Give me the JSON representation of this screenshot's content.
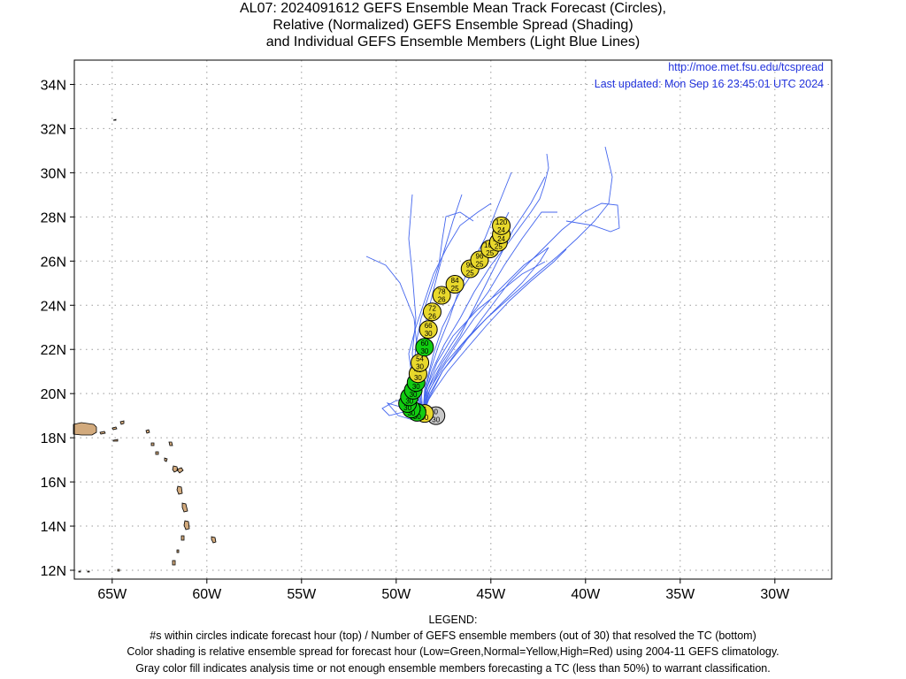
{
  "title_lines": [
    "AL07: 2024091612 GEFS Ensemble Mean Track Forecast (Circles),",
    "Relative (Normalized) GEFS Ensemble Spread (Shading)",
    "and Individual GEFS Ensemble Members (Light Blue Lines)"
  ],
  "credit": {
    "url": "http://moe.met.fsu.edu/tcspread",
    "updated": "Last updated: Mon Sep 16 23:45:01 UTC 2024"
  },
  "axes": {
    "lon_labels": [
      "65W",
      "60W",
      "55W",
      "50W",
      "45W",
      "40W",
      "35W",
      "30W"
    ],
    "lat_labels": [
      "12N",
      "14N",
      "16N",
      "18N",
      "20N",
      "22N",
      "24N",
      "26N",
      "28N",
      "30N",
      "32N",
      "34N"
    ],
    "lon_range": [
      -67,
      -27
    ],
    "lat_range": [
      11.6,
      35.1
    ],
    "grid": true
  },
  "legend": {
    "heading": "LEGEND:",
    "lines": [
      "#s within circles indicate forecast hour (top) / Number of GEFS ensemble members (out of 30) that resolved the TC (bottom)",
      "Color shading is relative ensemble spread for forecast hour (Low=Green,Normal=Yellow,High=Red) using 2004-11 GEFS climatology.",
      "Gray color fill indicates analysis time or not enough ensemble members forecasting a TC (less than 50%) to warrant classification."
    ]
  },
  "colors": {
    "low": "#11cc11",
    "normal": "#e8d82c",
    "gray": "#c8c8c8",
    "member_line": "#4466ee",
    "land": "#d2aa7d",
    "credit": "#2233dd"
  },
  "track": [
    {
      "hour": "0",
      "members": "30",
      "lon": -47.9,
      "lat": 19.0,
      "color": "gray"
    },
    {
      "hour": "6",
      "members": "30",
      "lon": -48.5,
      "lat": 19.1,
      "color": "normal"
    },
    {
      "hour": "12",
      "members": "30",
      "lon": -48.9,
      "lat": 19.15,
      "color": "low"
    },
    {
      "hour": "18",
      "members": "30",
      "lon": -49.2,
      "lat": 19.3,
      "color": "low"
    },
    {
      "hour": "24",
      "members": "30",
      "lon": -49.4,
      "lat": 19.55,
      "color": "low"
    },
    {
      "hour": "30",
      "members": "30",
      "lon": -49.3,
      "lat": 19.85,
      "color": "low"
    },
    {
      "hour": "36",
      "members": "30",
      "lon": -49.1,
      "lat": 20.15,
      "color": "low"
    },
    {
      "hour": "42",
      "members": "30",
      "lon": -48.95,
      "lat": 20.5,
      "color": "low"
    },
    {
      "hour": "48",
      "members": "30",
      "lon": -48.85,
      "lat": 20.9,
      "color": "normal"
    },
    {
      "hour": "54",
      "members": "30",
      "lon": -48.75,
      "lat": 21.4,
      "color": "normal"
    },
    {
      "hour": "60",
      "members": "30",
      "lon": -48.5,
      "lat": 22.1,
      "color": "low"
    },
    {
      "hour": "66",
      "members": "30",
      "lon": -48.3,
      "lat": 22.9,
      "color": "normal"
    },
    {
      "hour": "72",
      "members": "26",
      "lon": -48.1,
      "lat": 23.7,
      "color": "normal"
    },
    {
      "hour": "78",
      "members": "26",
      "lon": -47.6,
      "lat": 24.45,
      "color": "normal"
    },
    {
      "hour": "84",
      "members": "25",
      "lon": -46.9,
      "lat": 24.95,
      "color": "normal"
    },
    {
      "hour": "90",
      "members": "25",
      "lon": -46.1,
      "lat": 25.65,
      "color": "normal"
    },
    {
      "hour": "96",
      "members": "25",
      "lon": -45.6,
      "lat": 26.05,
      "color": "normal"
    },
    {
      "hour": "102",
      "members": "25",
      "lon": -45.05,
      "lat": 26.55,
      "color": "normal"
    },
    {
      "hour": "108",
      "members": "25",
      "lon": -44.6,
      "lat": 26.85,
      "color": "normal"
    },
    {
      "hour": "114",
      "members": "24",
      "lon": -44.45,
      "lat": 27.2,
      "color": "normal"
    },
    {
      "hour": "120",
      "members": "24",
      "lon": -44.45,
      "lat": 27.6,
      "color": "normal"
    }
  ]
}
